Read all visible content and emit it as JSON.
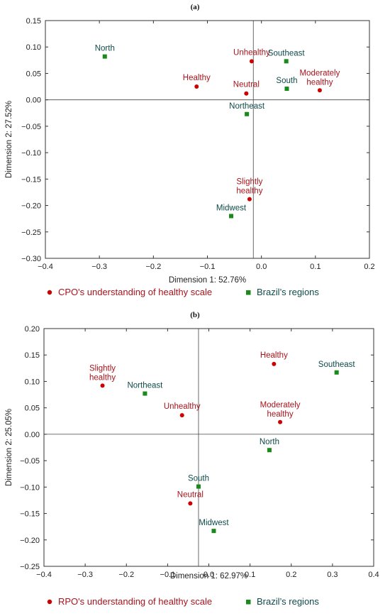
{
  "colors": {
    "series_a": "#cc0000",
    "series_b": "#1a8a1a",
    "text_a": "#a8141c",
    "text_b": "#0f4a4a"
  },
  "chart_data": [
    {
      "type": "scatter",
      "panel_label": "(a)",
      "xlabel": "Dimension 1: 52.76%",
      "ylabel": "Dimension 2: 27.52%",
      "xlim": [
        -0.4,
        0.2
      ],
      "ylim": [
        -0.3,
        0.15
      ],
      "xticks": [
        -0.4,
        -0.3,
        -0.2,
        -0.1,
        0.0,
        0.1,
        0.2
      ],
      "xtick_labels": [
        "−0.4",
        "−0.3",
        "−0.2",
        "−0.1",
        "0.0",
        "0.1",
        "0.2"
      ],
      "yticks": [
        0.15,
        0.1,
        0.05,
        0.0,
        -0.05,
        -0.1,
        -0.15,
        -0.2,
        -0.25,
        -0.3
      ],
      "ytick_labels": [
        "0.15",
        "0.10",
        "0.05",
        "0.00",
        "−0.05",
        "−0.10",
        "−0.15",
        "−0.20",
        "−0.25",
        "−0.30"
      ],
      "reference_lines": {
        "x": -0.015,
        "y": 0.0
      },
      "legend_position": "bottom",
      "series": [
        {
          "name": "CPO's understanding of healthy scale",
          "marker": "circle",
          "points": [
            {
              "label": "Unhealthy",
              "x": -0.018,
              "y": 0.073
            },
            {
              "label": "Healthy",
              "x": -0.12,
              "y": 0.025
            },
            {
              "label": "Neutral",
              "x": -0.028,
              "y": 0.012
            },
            {
              "label": "Moderately\nhealthy",
              "x": 0.108,
              "y": 0.018
            },
            {
              "label": "Slightly\nhealthy",
              "x": -0.022,
              "y": -0.188
            }
          ]
        },
        {
          "name": "Brazil’s regions",
          "marker": "square",
          "points": [
            {
              "label": "North",
              "x": -0.29,
              "y": 0.082
            },
            {
              "label": "Southeast",
              "x": 0.046,
              "y": 0.073
            },
            {
              "label": "South",
              "x": 0.047,
              "y": 0.021
            },
            {
              "label": "Northeast",
              "x": -0.027,
              "y": -0.027
            },
            {
              "label": "Midwest",
              "x": -0.056,
              "y": -0.22
            }
          ]
        }
      ]
    },
    {
      "type": "scatter",
      "panel_label": "(b)",
      "xlabel": "Dimension 1: 62.97%",
      "ylabel": "Dimension 2: 25.05%",
      "xlim": [
        -0.4,
        0.4
      ],
      "ylim": [
        -0.25,
        0.2
      ],
      "xticks": [
        -0.4,
        -0.3,
        -0.2,
        -0.1,
        0.0,
        0.1,
        0.2,
        0.3,
        0.4
      ],
      "xtick_labels": [
        "−0.4",
        "−0.3",
        "−0.2",
        "−0.1",
        "0.0",
        "0.1",
        "0.2",
        "0.3",
        "0.4"
      ],
      "yticks": [
        0.2,
        0.15,
        0.1,
        0.05,
        0.0,
        -0.05,
        -0.1,
        -0.15,
        -0.2,
        -0.25
      ],
      "ytick_labels": [
        "0.20",
        "0.15",
        "0.10",
        "0.05",
        "0.00",
        "−0.05",
        "−0.10",
        "−0.15",
        "−0.20",
        "−0.25"
      ],
      "reference_lines": {
        "x": -0.025,
        "y": 0.0
      },
      "legend_position": "bottom",
      "series": [
        {
          "name": "RPO's understanding of healthy scale",
          "marker": "circle",
          "points": [
            {
              "label": "Healthy",
              "x": 0.158,
              "y": 0.133
            },
            {
              "label": "Slightly\nhealthy",
              "x": -0.258,
              "y": 0.092
            },
            {
              "label": "Unhealthy",
              "x": -0.065,
              "y": 0.036
            },
            {
              "label": "Moderately\nhealthy",
              "x": 0.173,
              "y": 0.023
            },
            {
              "label": "Neutral",
              "x": -0.045,
              "y": -0.131
            }
          ]
        },
        {
          "name": "Brazil’s regions",
          "marker": "square",
          "points": [
            {
              "label": "Southeast",
              "x": 0.31,
              "y": 0.117
            },
            {
              "label": "Northeast",
              "x": -0.155,
              "y": 0.077
            },
            {
              "label": "North",
              "x": 0.147,
              "y": -0.03
            },
            {
              "label": "South",
              "x": -0.025,
              "y": -0.099
            },
            {
              "label": "Midwest",
              "x": 0.012,
              "y": -0.183
            }
          ]
        }
      ]
    }
  ]
}
